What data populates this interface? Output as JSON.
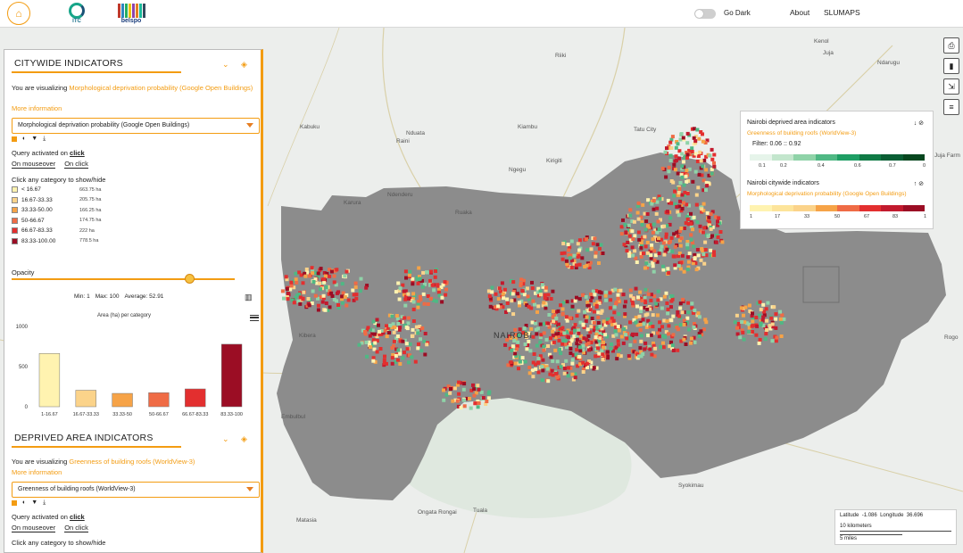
{
  "header": {
    "itc_label": "ITC",
    "belspo_label": "belspo",
    "dark_mode_label": "Go Dark",
    "nav": [
      "About",
      "SLUMAPS"
    ]
  },
  "map": {
    "places": [
      {
        "label": "Kabuku"
      },
      {
        "label": "Nduata"
      },
      {
        "label": "Raini"
      },
      {
        "label": "Kiambu"
      },
      {
        "label": "Tatu City"
      },
      {
        "label": "Kirigiti"
      },
      {
        "label": "Ngegu"
      },
      {
        "label": "Ndenderu"
      },
      {
        "label": "Karura"
      },
      {
        "label": "Ruaka"
      },
      {
        "label": "Juja"
      },
      {
        "label": "Ndarugu"
      },
      {
        "label": "Riiki"
      },
      {
        "label": "Kibera"
      },
      {
        "label": "Embulbul"
      },
      {
        "label": "Ongata Rongai"
      },
      {
        "label": "Matasia"
      },
      {
        "label": "Tuala"
      },
      {
        "label": "Syokimau"
      },
      {
        "label": "NAIROBI"
      },
      {
        "label": "Kenol"
      },
      {
        "label": "Rogo"
      },
      {
        "label": "Juja Farm"
      }
    ]
  },
  "citywide": {
    "title": "CITYWIDE INDICATORS",
    "visualizing_prefix": "You are visualizing ",
    "indicator_name": "Morphological deprivation probability (Google Open Buildings)",
    "more_info": "More information",
    "select_value": "Morphological deprivation probability (Google Open Buildings)",
    "query_label": "Query activated on ",
    "query_mode": "click",
    "mode_mouseover": "On mouseover",
    "mode_click": "On click",
    "category_hint": "Click any category to show/hide",
    "categories": [
      {
        "label": "< 16.67",
        "area": "663.75 ha",
        "color": "#fff3b0"
      },
      {
        "label": "16.67-33.33",
        "area": "205.75 ha",
        "color": "#fbd38a"
      },
      {
        "label": "33.33-50.00",
        "area": "166.25 ha",
        "color": "#f6a347"
      },
      {
        "label": "50-66.67",
        "area": "174.75 ha",
        "color": "#ef6b45"
      },
      {
        "label": "66.67-83.33",
        "area": "222 ha",
        "color": "#e32f2f"
      },
      {
        "label": "83.33-100.00",
        "area": "778.5 ha",
        "color": "#9b0d24"
      }
    ],
    "opacity_label": "Opacity",
    "opacity_value": 0.8,
    "stats": {
      "min": "Min: 1",
      "max": "Max: 100",
      "average": "Average: 52.91"
    }
  },
  "chart_data": {
    "type": "bar",
    "title": "Area (ha) per category",
    "categories": [
      "1-16.67",
      "16.67-33.33",
      "33.33-50",
      "50-66.67",
      "66.67-83.33",
      "83.33-100"
    ],
    "values": [
      663.75,
      205.75,
      166.25,
      174.75,
      222,
      778.5
    ],
    "colors": [
      "#fff3b0",
      "#fbd38a",
      "#f6a347",
      "#ef6b45",
      "#e32f2f",
      "#9b0d24"
    ],
    "ylim": [
      0,
      1000
    ],
    "yticks": [
      0,
      500,
      1000
    ]
  },
  "deprived": {
    "title": "DEPRIVED AREA INDICATORS",
    "visualizing_prefix": "You are visualizing ",
    "indicator_name": "Greenness of building roofs (WorldView-3)",
    "more_info": "More information",
    "select_value": "Greenness of building roofs (WorldView-3)",
    "query_label": "Query activated on ",
    "query_mode": "click",
    "mode_mouseover": "On mouseover",
    "mode_click": "On click",
    "category_hint": "Click any category to show/hide"
  },
  "legend": {
    "deprived_title": "Nairobi deprived area indicators",
    "deprived_sub": "Greenness of building roofs (WorldView-3)",
    "filter": "Filter: 0.06 :: 0.92",
    "green_ticks": [
      "0.1",
      "0.2",
      "0.4",
      "0.6",
      "0.7",
      "0"
    ],
    "citywide_title": "Nairobi citywide indicators",
    "citywide_sub": "Morphological deprivation probability (Google Open Buildings)",
    "red_ticks": [
      "1",
      "17",
      "33",
      "50",
      "67",
      "83",
      "1"
    ]
  },
  "coords": {
    "lat_label": "Latitude",
    "lat_value": "-1.086",
    "lon_label": "Longitude",
    "lon_value": "36.696",
    "scale_km": "10 kilometers",
    "scale_mi": "5 miles"
  }
}
